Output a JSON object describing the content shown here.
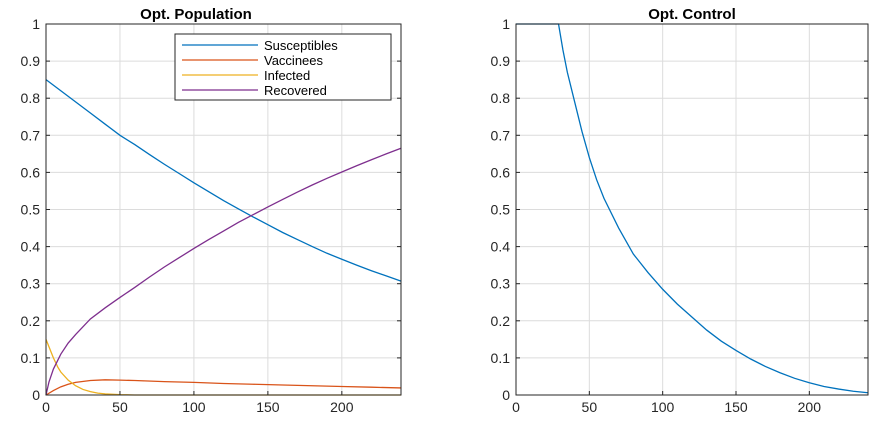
{
  "chart_data": [
    {
      "type": "line",
      "title": "Opt. Population",
      "xlabel": "",
      "ylabel": "",
      "xlim": [
        0,
        240
      ],
      "ylim": [
        0,
        1
      ],
      "xticks": [
        0,
        50,
        100,
        150,
        200
      ],
      "yticks": [
        0,
        0.1,
        0.2,
        0.3,
        0.4,
        0.5,
        0.6,
        0.7,
        0.8,
        0.9,
        1
      ],
      "grid": true,
      "legend": "top-right",
      "series": [
        {
          "name": "Susceptibles",
          "color": "#0072BD",
          "x": [
            0,
            10,
            20,
            30,
            40,
            50,
            60,
            70,
            80,
            90,
            100,
            110,
            120,
            130,
            140,
            150,
            160,
            170,
            180,
            190,
            200,
            210,
            220,
            230,
            240
          ],
          "y": [
            0.85,
            0.82,
            0.79,
            0.76,
            0.73,
            0.7,
            0.675,
            0.648,
            0.622,
            0.597,
            0.572,
            0.548,
            0.524,
            0.502,
            0.48,
            0.459,
            0.438,
            0.419,
            0.4,
            0.382,
            0.366,
            0.35,
            0.335,
            0.321,
            0.307
          ]
        },
        {
          "name": "Vaccinees",
          "color": "#D95319",
          "x": [
            0,
            5,
            10,
            15,
            20,
            30,
            40,
            50,
            60,
            80,
            100,
            120,
            140,
            160,
            180,
            200,
            220,
            240
          ],
          "y": [
            0.0,
            0.012,
            0.022,
            0.029,
            0.034,
            0.039,
            0.041,
            0.04,
            0.039,
            0.036,
            0.034,
            0.031,
            0.029,
            0.027,
            0.025,
            0.023,
            0.021,
            0.019
          ]
        },
        {
          "name": "Infected",
          "color": "#EDB120",
          "x": [
            0,
            2,
            5,
            8,
            10,
            15,
            20,
            25,
            30,
            35,
            40,
            50,
            60,
            80,
            100,
            150,
            200,
            240
          ],
          "y": [
            0.15,
            0.13,
            0.1,
            0.075,
            0.062,
            0.04,
            0.025,
            0.015,
            0.009,
            0.005,
            0.003,
            0.001,
            0.0,
            0.0,
            0.0,
            0.0,
            0.0,
            0.0
          ]
        },
        {
          "name": "Recovered",
          "color": "#7E2F8E",
          "x": [
            0,
            2,
            5,
            10,
            15,
            20,
            30,
            40,
            50,
            60,
            70,
            80,
            90,
            100,
            110,
            120,
            130,
            140,
            150,
            160,
            170,
            180,
            190,
            200,
            210,
            220,
            230,
            240
          ],
          "y": [
            0.0,
            0.035,
            0.07,
            0.11,
            0.14,
            0.163,
            0.205,
            0.235,
            0.263,
            0.29,
            0.318,
            0.345,
            0.37,
            0.395,
            0.419,
            0.442,
            0.465,
            0.486,
            0.507,
            0.527,
            0.547,
            0.566,
            0.584,
            0.601,
            0.618,
            0.634,
            0.65,
            0.665
          ]
        }
      ]
    },
    {
      "type": "line",
      "title": "Opt. Control",
      "xlabel": "",
      "ylabel": "",
      "xlim": [
        0,
        240
      ],
      "ylim": [
        0,
        1
      ],
      "xticks": [
        0,
        50,
        100,
        150,
        200
      ],
      "yticks": [
        0,
        0.1,
        0.2,
        0.3,
        0.4,
        0.5,
        0.6,
        0.7,
        0.8,
        0.9,
        1
      ],
      "grid": true,
      "series": [
        {
          "color": "#0072BD",
          "x": [
            0,
            10,
            20,
            29,
            32,
            35,
            40,
            45,
            50,
            55,
            60,
            70,
            80,
            90,
            100,
            110,
            120,
            130,
            140,
            150,
            160,
            170,
            180,
            190,
            200,
            210,
            220,
            230,
            240
          ],
          "y": [
            1.0,
            1.0,
            1.0,
            1.0,
            0.93,
            0.87,
            0.79,
            0.71,
            0.64,
            0.58,
            0.53,
            0.45,
            0.38,
            0.33,
            0.285,
            0.245,
            0.21,
            0.175,
            0.145,
            0.12,
            0.097,
            0.077,
            0.06,
            0.045,
            0.033,
            0.023,
            0.016,
            0.01,
            0.006
          ]
        }
      ]
    }
  ]
}
